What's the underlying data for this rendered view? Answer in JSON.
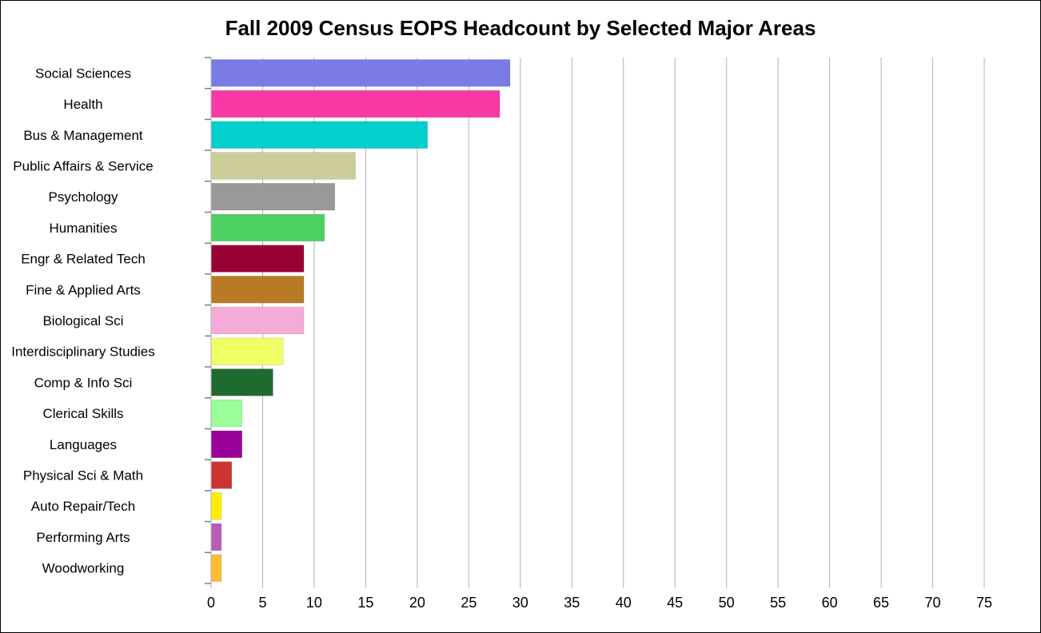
{
  "chart_data": {
    "type": "bar",
    "orientation": "horizontal",
    "title": "Fall 2009 Census EOPS Headcount by Selected Major Areas",
    "xlabel": "",
    "ylabel": "",
    "xlim": [
      0,
      75
    ],
    "x_ticks": [
      "0",
      "5",
      "10",
      "15",
      "20",
      "25",
      "30",
      "35",
      "40",
      "45",
      "50",
      "55",
      "60",
      "65",
      "70",
      "75"
    ],
    "grid": "vertical",
    "legend": "none",
    "categories": [
      "Social Sciences",
      "Health",
      "Bus & Management",
      "Public Affairs & Service",
      "Psychology",
      "Humanities",
      "Engr & Related Tech",
      "Fine & Applied Arts",
      "Biological Sci",
      "Interdisciplinary Studies",
      "Comp & Info Sci",
      "Clerical Skills",
      "Languages",
      "Physical Sci & Math",
      "Auto Repair/Tech",
      "Performing Arts",
      "Woodworking"
    ],
    "values": [
      29,
      28,
      21,
      14,
      12,
      11,
      9,
      9,
      9,
      7,
      6,
      3,
      3,
      2,
      1,
      1,
      1
    ],
    "colors": [
      "#7b7be6",
      "#f839a5",
      "#04cfcf",
      "#cccc99",
      "#999999",
      "#4cd163",
      "#990033",
      "#b87a24",
      "#f5abd8",
      "#f0ff66",
      "#1f6b2e",
      "#99ff99",
      "#990099",
      "#cc3333",
      "#ffee00",
      "#bb5bb8",
      "#ffbb33"
    ]
  }
}
